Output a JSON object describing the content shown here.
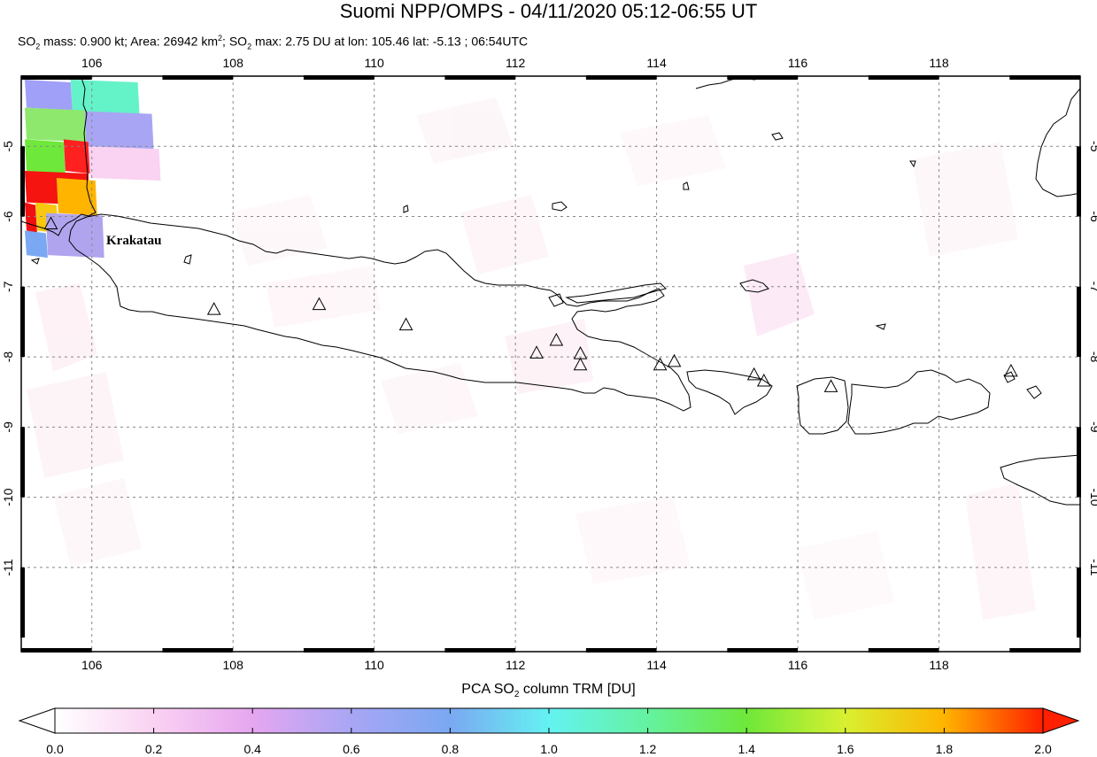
{
  "title": "Suomi NPP/OMPS - 04/11/2020 05:12-06:55 UT",
  "subtitle": {
    "mass_prefix": "SO",
    "mass_text": " mass: 0.900 kt; Area: 26942 km",
    "area_sup": "2",
    "max_prefix": "; SO",
    "max_text": " max: 2.75 DU at lon: 105.46 lat: -5.13 ; 06:54UTC",
    "sub2": "2"
  },
  "map": {
    "lon_range": [
      105.0,
      120.0
    ],
    "lat_range": [
      -12.2,
      -4.0
    ],
    "lon_ticks": [
      "106",
      "108",
      "110",
      "112",
      "114",
      "116",
      "118"
    ],
    "lat_ticks": [
      "-5",
      "-6",
      "-7",
      "-8",
      "-9",
      "-10",
      "-11"
    ],
    "volcano_label": "Krakatau",
    "volcanoes": [
      {
        "lon": 105.42,
        "lat": -6.1
      },
      {
        "lon": 107.73,
        "lat": -7.32
      },
      {
        "lon": 109.22,
        "lat": -7.25
      },
      {
        "lon": 110.45,
        "lat": -7.54
      },
      {
        "lon": 112.3,
        "lat": -7.94
      },
      {
        "lon": 112.58,
        "lat": -7.76
      },
      {
        "lon": 112.92,
        "lat": -7.95
      },
      {
        "lon": 112.92,
        "lat": -8.11
      },
      {
        "lon": 114.05,
        "lat": -8.11
      },
      {
        "lon": 114.25,
        "lat": -8.06
      },
      {
        "lon": 115.38,
        "lat": -8.25
      },
      {
        "lon": 115.52,
        "lat": -8.34
      },
      {
        "lon": 116.47,
        "lat": -8.42
      },
      {
        "lon": 119.02,
        "lat": -8.2
      }
    ],
    "so2_cells": [
      {
        "lon": [
          105.05,
          105.7
        ],
        "lat": [
          -4.05,
          -4.45
        ],
        "color": "#a0a0f8"
      },
      {
        "lon": [
          105.7,
          106.65
        ],
        "lat": [
          -4.05,
          -4.5
        ],
        "color": "#64f2c8"
      },
      {
        "lon": [
          105.05,
          105.9
        ],
        "lat": [
          -4.45,
          -4.9
        ],
        "color": "#8ee86e"
      },
      {
        "lon": [
          105.9,
          106.85
        ],
        "lat": [
          -4.5,
          -5.0
        ],
        "color": "#a8a6f4"
      },
      {
        "lon": [
          105.05,
          105.6
        ],
        "lat": [
          -4.9,
          -5.35
        ],
        "color": "#6ee83a"
      },
      {
        "lon": [
          105.6,
          105.95
        ],
        "lat": [
          -4.9,
          -5.35
        ],
        "color": "#ff2020"
      },
      {
        "lon": [
          105.95,
          106.95
        ],
        "lat": [
          -5.0,
          -5.45
        ],
        "color": "#fad2f2"
      },
      {
        "lon": [
          105.05,
          105.95
        ],
        "lat": [
          -5.35,
          -5.8
        ],
        "color": "#f51410"
      },
      {
        "lon": [
          105.05,
          105.2
        ],
        "lat": [
          -5.8,
          -6.2
        ],
        "color": "#f01010"
      },
      {
        "lon": [
          105.2,
          105.5
        ],
        "lat": [
          -5.8,
          -6.2
        ],
        "color": "#f8c810"
      },
      {
        "lon": [
          105.5,
          106.05
        ],
        "lat": [
          -5.45,
          -5.95
        ],
        "color": "#ffb400"
      },
      {
        "lon": [
          105.05,
          105.35
        ],
        "lat": [
          -6.2,
          -6.55
        ],
        "color": "#7aa8f2"
      },
      {
        "lon": [
          105.35,
          106.15
        ],
        "lat": [
          -5.95,
          -6.55
        ],
        "color": "#b0a4ee"
      }
    ]
  },
  "colorbar": {
    "title_prefix": "PCA SO",
    "title_sub": "2",
    "title_suffix": " column TRM [DU]",
    "ticks": [
      "0.0",
      "0.2",
      "0.4",
      "0.6",
      "0.8",
      "1.0",
      "1.2",
      "1.4",
      "1.6",
      "1.8",
      "2.0"
    ],
    "range": [
      0.0,
      2.0
    ],
    "colors": [
      "#ffffff",
      "#fad2f2",
      "#e6a6f0",
      "#a8a6f4",
      "#7aa8f2",
      "#64f2f2",
      "#64f2a0",
      "#6ee83a",
      "#d8f030",
      "#ffb400",
      "#ff2000"
    ]
  }
}
